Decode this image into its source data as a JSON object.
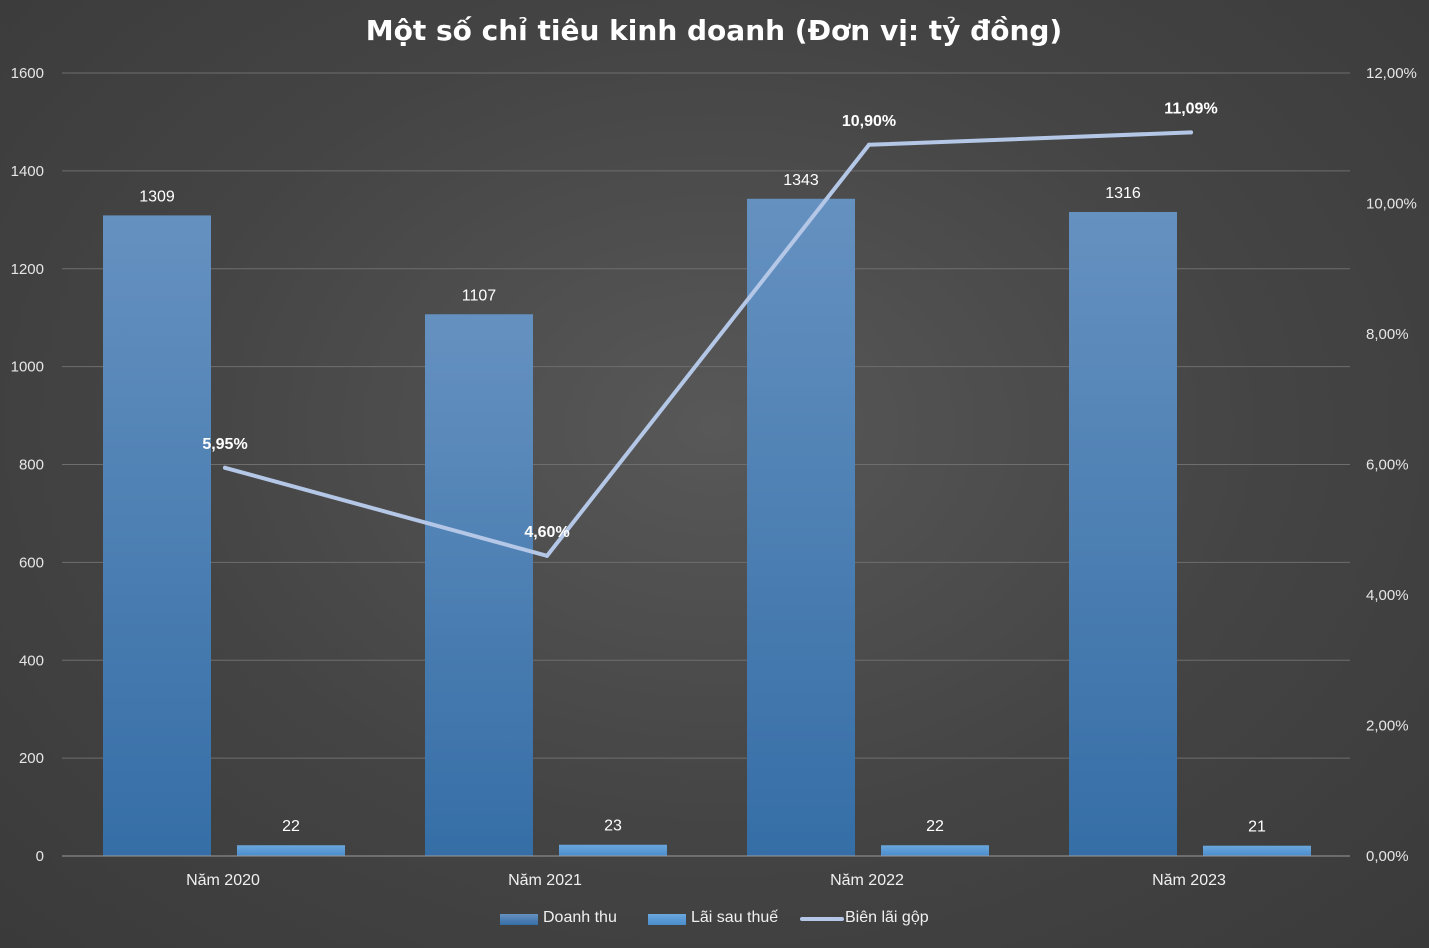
{
  "chart_data": {
    "type": "bar",
    "title": "Một số chỉ tiêu kinh doanh (Đơn vị: tỷ đồng)",
    "categories": [
      "Năm 2020",
      "Năm 2021",
      "Năm 2022",
      "Năm 2023"
    ],
    "series": [
      {
        "name": "Doanh thu",
        "type": "bar",
        "axis": "left",
        "values": [
          1309,
          1107,
          1343,
          1316
        ],
        "labels": [
          "1309",
          "1107",
          "1343",
          "1316"
        ],
        "color": "#4a7fb5"
      },
      {
        "name": "Lãi sau thuế",
        "type": "bar",
        "axis": "left",
        "values": [
          22,
          23,
          22,
          21
        ],
        "labels": [
          "22",
          "23",
          "22",
          "21"
        ],
        "color": "#5b9bd5"
      },
      {
        "name": "Biên lãi gộp",
        "type": "line",
        "axis": "right",
        "values": [
          5.95,
          4.6,
          10.9,
          11.09
        ],
        "labels": [
          "5,95%",
          "4,60%",
          "10,90%",
          "11,09%"
        ],
        "color": "#b4c7e7"
      }
    ],
    "y_left": {
      "min": 0,
      "max": 1600,
      "ticks": [
        "0",
        "200",
        "400",
        "600",
        "800",
        "1000",
        "1200",
        "1400",
        "1600"
      ]
    },
    "y_right": {
      "min": 0,
      "max": 12,
      "ticks": [
        "0,00%",
        "2,00%",
        "4,00%",
        "6,00%",
        "8,00%",
        "10,00%",
        "12,00%"
      ]
    },
    "grid": true,
    "legend": "bottom"
  }
}
